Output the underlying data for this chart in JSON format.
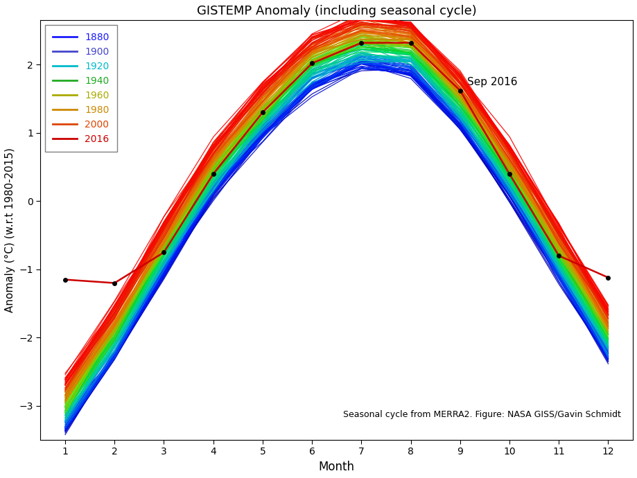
{
  "title": "GISTEMP Anomaly (including seasonal cycle)",
  "xlabel": "Month",
  "ylabel": "Anomaly (°C) (w.r.t 1980-2015)",
  "annotation_text": "Sep 2016",
  "footnote": "Seasonal cycle from MERRA2. Figure: NASA GISS/Gavin Schmidt",
  "ylim": [
    -3.5,
    2.65
  ],
  "xlim": [
    0.5,
    12.5
  ],
  "xticks": [
    1,
    2,
    3,
    4,
    5,
    6,
    7,
    8,
    9,
    10,
    11,
    12
  ],
  "yticks": [
    -3,
    -2,
    -1,
    0,
    1,
    2
  ],
  "legend_years": [
    1880,
    1900,
    1920,
    1940,
    1960,
    1980,
    2000,
    2016
  ],
  "legend_colors_hex": [
    "#1a1aff",
    "#4444cc",
    "#00bbcc",
    "#22aa22",
    "#aaaa00",
    "#cc8800",
    "#dd4400",
    "#cc0000"
  ],
  "start_year": 1880,
  "end_year": 2016,
  "background_color": "#ffffff",
  "seasonal_cycle": [
    -3.05,
    -2.0,
    -0.75,
    0.4,
    1.25,
    1.98,
    2.28,
    2.18,
    1.42,
    0.38,
    -0.82,
    -2.0
  ],
  "year_2016_values": [
    -1.15,
    -1.2,
    -0.75,
    0.4,
    1.3,
    2.02,
    2.32,
    2.32,
    1.62,
    0.4,
    -0.8,
    -1.12
  ]
}
